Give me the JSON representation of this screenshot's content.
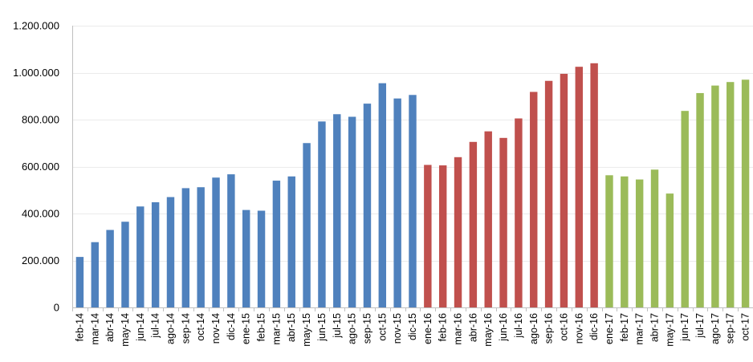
{
  "chart_data": {
    "type": "bar",
    "title": "",
    "xlabel": "",
    "ylabel": "",
    "ylim": [
      0,
      1200000
    ],
    "grid": true,
    "legend": "none",
    "y_ticks": [
      {
        "value": 0,
        "label": "0"
      },
      {
        "value": 200000,
        "label": "200.000"
      },
      {
        "value": 400000,
        "label": "400.000"
      },
      {
        "value": 600000,
        "label": "600.000"
      },
      {
        "value": 800000,
        "label": "800.000"
      },
      {
        "value": 1000000,
        "label": "1.000.000"
      },
      {
        "value": 1200000,
        "label": "1.200.000"
      }
    ],
    "categories": [
      "feb-14",
      "mar-14",
      "abr-14",
      "may-14",
      "jun-14",
      "jul-14",
      "ago-14",
      "sep-14",
      "oct-14",
      "nov-14",
      "dic-14",
      "ene-15",
      "feb-15",
      "mar-15",
      "abr-15",
      "may-15",
      "jun-15",
      "jul-15",
      "ago-15",
      "sep-15",
      "oct-15",
      "nov-15",
      "dic-15",
      "ene-16",
      "feb-16",
      "mar-16",
      "abr-16",
      "may-16",
      "jun-16",
      "jul-16",
      "ago-16",
      "sep-16",
      "oct-16",
      "nov-16",
      "dic-16",
      "ene-17",
      "feb-17",
      "mar-17",
      "abr-17",
      "may-17",
      "jun-17",
      "jul-17",
      "ago-17",
      "sep-17",
      "oct-17"
    ],
    "values": [
      215000,
      278000,
      330000,
      365000,
      430000,
      448000,
      470000,
      508000,
      512000,
      553000,
      567000,
      415000,
      412000,
      540000,
      558000,
      700000,
      792000,
      823000,
      812000,
      868000,
      955000,
      890000,
      905000,
      607000,
      605000,
      640000,
      705000,
      750000,
      722000,
      805000,
      918000,
      965000,
      995000,
      1025000,
      1040000,
      563000,
      558000,
      545000,
      587000,
      485000,
      837000,
      913000,
      945000,
      960000,
      970000
    ],
    "bar_colors": [
      "#4F81BD",
      "#4F81BD",
      "#4F81BD",
      "#4F81BD",
      "#4F81BD",
      "#4F81BD",
      "#4F81BD",
      "#4F81BD",
      "#4F81BD",
      "#4F81BD",
      "#4F81BD",
      "#4F81BD",
      "#4F81BD",
      "#4F81BD",
      "#4F81BD",
      "#4F81BD",
      "#4F81BD",
      "#4F81BD",
      "#4F81BD",
      "#4F81BD",
      "#4F81BD",
      "#4F81BD",
      "#4F81BD",
      "#C0504D",
      "#C0504D",
      "#C0504D",
      "#C0504D",
      "#C0504D",
      "#C0504D",
      "#C0504D",
      "#C0504D",
      "#C0504D",
      "#C0504D",
      "#C0504D",
      "#C0504D",
      "#9BBB59",
      "#9BBB59",
      "#9BBB59",
      "#9BBB59",
      "#9BBB59",
      "#9BBB59",
      "#9BBB59",
      "#9BBB59",
      "#9BBB59",
      "#9BBB59"
    ],
    "colors": {
      "gridline": "#ebebeb",
      "axis": "#bfbfbf"
    }
  }
}
